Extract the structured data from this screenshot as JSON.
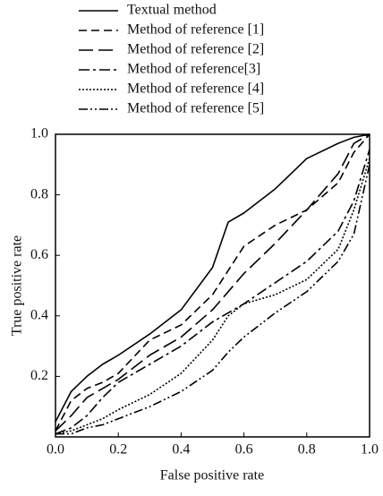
{
  "chart_data": {
    "type": "line",
    "xlabel": "False positive rate",
    "ylabel": "True positive rate",
    "x": [
      0,
      0.05,
      0.1,
      0.15,
      0.2,
      0.3,
      0.4,
      0.5,
      0.55,
      0.6,
      0.7,
      0.8,
      0.9,
      0.95,
      1.0
    ],
    "series": [
      {
        "name": "Textual method",
        "color": "#000000",
        "dash": "none",
        "values": [
          0.05,
          0.15,
          0.2,
          0.24,
          0.27,
          0.34,
          0.42,
          0.56,
          0.71,
          0.74,
          0.82,
          0.92,
          0.97,
          0.99,
          1.0
        ]
      },
      {
        "name": "Method of reference [1]",
        "color": "#000000",
        "dash": "9 5",
        "values": [
          0.02,
          0.12,
          0.16,
          0.18,
          0.21,
          0.32,
          0.37,
          0.47,
          0.55,
          0.63,
          0.7,
          0.75,
          0.84,
          0.94,
          1.0
        ]
      },
      {
        "name": "Method of reference [2]",
        "color": "#000000",
        "dash": "16 6",
        "values": [
          0.02,
          0.07,
          0.13,
          0.16,
          0.19,
          0.27,
          0.33,
          0.42,
          0.48,
          0.54,
          0.64,
          0.75,
          0.87,
          0.97,
          1.0
        ]
      },
      {
        "name": "Method of reference[3]",
        "color": "#000000",
        "dash": "12 4 3 4",
        "values": [
          0.01,
          0.03,
          0.07,
          0.13,
          0.18,
          0.24,
          0.3,
          0.38,
          0.41,
          0.44,
          0.51,
          0.58,
          0.68,
          0.78,
          0.95
        ]
      },
      {
        "name": "Method of reference [4]",
        "color": "#000000",
        "dash": "2 2",
        "values": [
          0.01,
          0.02,
          0.04,
          0.06,
          0.09,
          0.14,
          0.21,
          0.32,
          0.4,
          0.44,
          0.47,
          0.52,
          0.62,
          0.75,
          0.92
        ]
      },
      {
        "name": "Method of reference [5]",
        "color": "#000000",
        "dash": "10 3 2 3 2 3",
        "values": [
          0.01,
          0.01,
          0.03,
          0.04,
          0.06,
          0.1,
          0.15,
          0.22,
          0.28,
          0.33,
          0.41,
          0.48,
          0.58,
          0.67,
          0.9
        ]
      }
    ],
    "xlim": [
      0,
      1.0
    ],
    "ylim": [
      0,
      1.0
    ],
    "xticks": [
      {
        "value": 0,
        "label": "0.0"
      },
      0.2,
      0.4,
      0.6,
      0.8,
      {
        "value": 1.0,
        "label": "1.0"
      }
    ],
    "yticks": [
      0.2,
      0.4,
      0.6,
      0.8,
      {
        "value": 1.0,
        "label": "1.0"
      }
    ],
    "legend": "top"
  }
}
